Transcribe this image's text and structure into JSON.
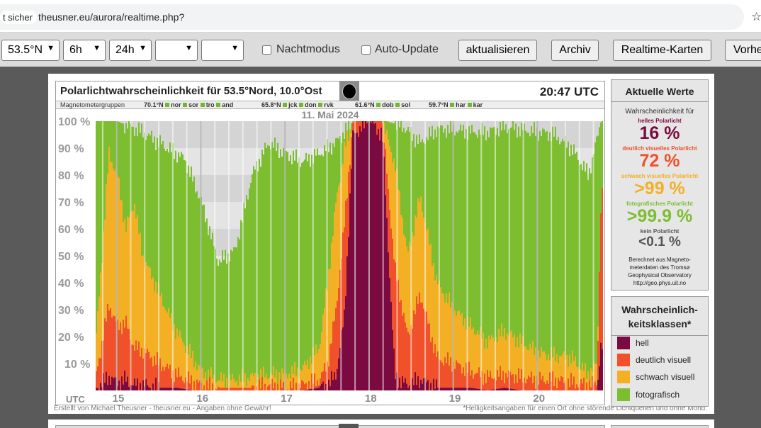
{
  "browser": {
    "security_text": "t sicher",
    "url": "theusner.eu/aurora/realtime.php?",
    "star_icon": "☆"
  },
  "controls": {
    "latitude": "53.5°N",
    "range_a": "6h",
    "range_b": "24h",
    "select_empty_1": "",
    "select_empty_2": "",
    "night_mode_label": "Nachtmodus",
    "auto_update_label": "Auto-Update",
    "refresh_button": "aktualisieren",
    "archive_button": "Archiv",
    "maps_button": "Realtime-Karten",
    "forecast_button": "Vorhe"
  },
  "chart": {
    "title": "Polarlichtwahrscheinlichkeit für  53.5°Nord, 10.0°Ost",
    "time": "20:47 UTC",
    "date": "11. Mai 2024",
    "mag_groups": {
      "label": "Magnetometergruppen",
      "g1": "70.1°N",
      "g1_stations": [
        "nor",
        "sor",
        "tro",
        "and"
      ],
      "g2": "65.8°N",
      "g2_stations": [
        "jck",
        "don",
        "rvk"
      ],
      "g3": "61.6°N",
      "g3_stations": [
        "dob",
        "sol"
      ],
      "g4": "59.7°N",
      "g4_stations": [
        "har",
        "kar"
      ]
    },
    "y_ticks": [
      "100 %",
      "90 %",
      "80 %",
      "70 %",
      "60 %",
      "50 %",
      "40 %",
      "30 %",
      "20 %",
      "10 %"
    ],
    "x_axis_label": "UTC",
    "x_ticks": [
      "15",
      "16",
      "17",
      "18",
      "19",
      "20"
    ],
    "footer_left": "Erstellt von Michael Theusner - theusner.eu - Angaben ohne Gewähr!",
    "footer_right": "*Helligkeitsangaben für einen Ort ohne störende Lichtquellen und ohne Mond."
  },
  "current": {
    "heading": "Aktuelle Werte",
    "intro": "Wahrscheinlichkeit für",
    "classes": [
      {
        "label": "helles Polarlicht",
        "value": "16 %",
        "color": "#7a0a40"
      },
      {
        "label": "deutlich visuelles Polarlicht",
        "value": "72 %",
        "color": "#f0502a"
      },
      {
        "label": "schwach visuelles Polarlicht",
        "value": ">99 %",
        "color": "#f3b024"
      },
      {
        "label": "fotografisches Polarlicht",
        "value": ">99.9 %",
        "color": "#7cbe30"
      },
      {
        "label": "kein Polarlicht",
        "value": "<0.1 %",
        "color": "#555555"
      }
    ],
    "credit_lines": [
      "Berechnet aus Magneto-",
      "meterdaten des Tromsø",
      "Geophysical Observatory",
      "http://geo.phys.uit.no"
    ]
  },
  "legend": {
    "heading_line1": "Wahrscheinlich-",
    "heading_line2": "keitsklassen*",
    "items": [
      {
        "label": "hell",
        "color": "#7a0a40"
      },
      {
        "label": "deutlich visuell",
        "color": "#f0502a"
      },
      {
        "label": "schwach visuell",
        "color": "#f3b024"
      },
      {
        "label": "fotografisch",
        "color": "#7cbe30"
      }
    ]
  },
  "chart_data": {
    "type": "area",
    "title": "Polarlichtwahrscheinlichkeit für  53.5°Nord, 10.0°Ost",
    "xlabel": "UTC",
    "ylabel": "",
    "ylim": [
      0,
      100
    ],
    "xlim": [
      14.75,
      20.78
    ],
    "x_ticks": [
      15,
      16,
      17,
      18,
      19,
      20
    ],
    "series": [
      {
        "name": "fotografisch",
        "color": "#7cbe30",
        "x": [
          14.75,
          15.0,
          15.3,
          15.5,
          15.8,
          16.0,
          16.2,
          16.4,
          16.6,
          16.8,
          17.0,
          17.2,
          17.4,
          17.6,
          17.8,
          18.0,
          18.2,
          18.4,
          18.6,
          18.8,
          19.0,
          19.2,
          19.4,
          19.6,
          19.8,
          20.0,
          20.2,
          20.4,
          20.6,
          20.75
        ],
        "values": [
          100,
          100,
          96,
          92,
          86,
          70,
          48,
          52,
          80,
          92,
          88,
          85,
          88,
          92,
          100,
          100,
          100,
          98,
          92,
          97,
          97,
          96,
          96,
          98,
          97,
          96,
          95,
          90,
          80,
          100
        ]
      },
      {
        "name": "schwach visuell",
        "color": "#f3b024",
        "x": [
          14.75,
          14.9,
          15.0,
          15.1,
          15.2,
          15.3,
          15.5,
          15.7,
          15.9,
          16.0,
          16.2,
          16.4,
          16.6,
          16.8,
          17.0,
          17.2,
          17.4,
          17.5,
          17.6,
          17.7,
          17.8,
          18.0,
          18.15,
          18.3,
          18.45,
          18.6,
          18.8,
          19.0,
          19.2,
          19.4,
          19.6,
          19.8,
          20.0,
          20.2,
          20.4,
          20.6,
          20.7,
          20.75
        ],
        "values": [
          20,
          88,
          80,
          60,
          70,
          50,
          36,
          22,
          12,
          7,
          4,
          4,
          5,
          6,
          6,
          8,
          16,
          40,
          70,
          90,
          100,
          100,
          100,
          84,
          50,
          72,
          40,
          30,
          24,
          18,
          22,
          18,
          14,
          13,
          12,
          6,
          10,
          65
        ]
      },
      {
        "name": "deutlich visuell",
        "color": "#f0502a",
        "x": [
          14.75,
          14.9,
          15.0,
          15.1,
          15.2,
          15.3,
          15.5,
          15.7,
          15.9,
          16.0,
          16.2,
          16.4,
          16.6,
          16.8,
          17.0,
          17.2,
          17.4,
          17.5,
          17.6,
          17.7,
          17.8,
          18.0,
          18.15,
          18.3,
          18.45,
          18.6,
          18.8,
          19.0,
          19.2,
          19.4,
          19.6,
          19.8,
          20.0,
          20.2,
          20.4,
          20.6,
          20.7,
          20.75
        ],
        "values": [
          6,
          32,
          24,
          25,
          16,
          15,
          10,
          6,
          3,
          2,
          1,
          1,
          1,
          2,
          1,
          2,
          4,
          10,
          30,
          62,
          100,
          100,
          100,
          45,
          20,
          36,
          12,
          10,
          7,
          5,
          6,
          5,
          4,
          4,
          3,
          2,
          3,
          72
        ]
      },
      {
        "name": "hell",
        "color": "#7a0a40",
        "x": [
          14.75,
          14.9,
          15.0,
          15.1,
          15.2,
          15.3,
          15.5,
          15.7,
          15.9,
          16.0,
          16.2,
          16.4,
          16.6,
          16.8,
          17.0,
          17.2,
          17.4,
          17.5,
          17.6,
          17.7,
          17.8,
          18.0,
          18.15,
          18.3,
          18.45,
          18.6,
          18.8,
          19.0,
          19.2,
          19.4,
          19.6,
          19.8,
          20.0,
          20.2,
          20.4,
          20.6,
          20.7,
          20.75
        ],
        "values": [
          1,
          5,
          3,
          4,
          2,
          2,
          1,
          1,
          0,
          0,
          0,
          0,
          0,
          0,
          0,
          0,
          1,
          2,
          6,
          28,
          95,
          100,
          95,
          5,
          2,
          4,
          1,
          1,
          1,
          0,
          1,
          0,
          0,
          0,
          0,
          0,
          0,
          16
        ]
      }
    ]
  }
}
